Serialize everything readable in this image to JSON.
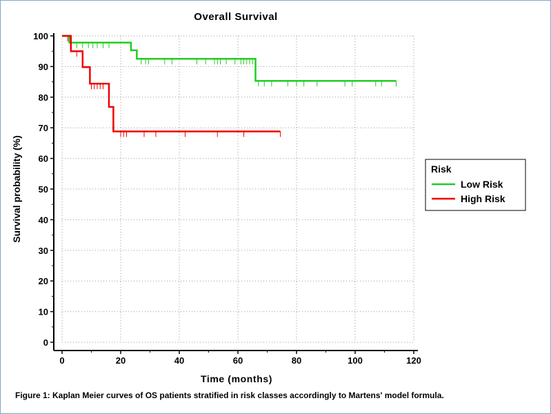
{
  "figure": {
    "caption": "Figure 1: Kaplan Meier curves of OS patients stratified in risk classes accordingly to Martens' model  formula."
  },
  "chart_data": {
    "type": "line",
    "title": "Overall Survival",
    "xlabel": "Time (months)",
    "ylabel": "Survival probability (%)",
    "xlim": [
      0,
      120
    ],
    "ylim": [
      0,
      100
    ],
    "xticks": [
      "0",
      "20",
      "40",
      "60",
      "80",
      "100",
      "120"
    ],
    "yticks": [
      "0",
      "10",
      "20",
      "30",
      "40",
      "50",
      "60",
      "70",
      "80",
      "90",
      "100"
    ],
    "grid": true,
    "legend": {
      "title": "Risk",
      "placement": "right"
    },
    "series": [
      {
        "name": "Low Risk",
        "color": "#22cc22",
        "steps": [
          [
            0,
            100
          ],
          [
            2.5,
            100
          ],
          [
            2.5,
            97.8
          ],
          [
            23.5,
            97.8
          ],
          [
            23.5,
            95.3
          ],
          [
            25.5,
            95.3
          ],
          [
            25.5,
            92.5
          ],
          [
            66,
            92.5
          ],
          [
            66,
            85.3
          ],
          [
            114,
            85.3
          ]
        ],
        "censored": [
          [
            3,
            97.8
          ],
          [
            5,
            97.8
          ],
          [
            7,
            97.8
          ],
          [
            9,
            97.8
          ],
          [
            10.5,
            97.8
          ],
          [
            12,
            97.8
          ],
          [
            14,
            97.8
          ],
          [
            16,
            97.8
          ],
          [
            27,
            92.5
          ],
          [
            28.5,
            92.5
          ],
          [
            29.5,
            92.5
          ],
          [
            35,
            92.5
          ],
          [
            37.5,
            92.5
          ],
          [
            46,
            92.5
          ],
          [
            49,
            92.5
          ],
          [
            52,
            92.5
          ],
          [
            53,
            92.5
          ],
          [
            54,
            92.5
          ],
          [
            56,
            92.5
          ],
          [
            59,
            92.5
          ],
          [
            61,
            92.5
          ],
          [
            62,
            92.5
          ],
          [
            63,
            92.5
          ],
          [
            64,
            92.5
          ],
          [
            65,
            92.5
          ],
          [
            67,
            85.3
          ],
          [
            69,
            85.3
          ],
          [
            71.5,
            85.3
          ],
          [
            77,
            85.3
          ],
          [
            80,
            85.3
          ],
          [
            82.5,
            85.3
          ],
          [
            87,
            85.3
          ],
          [
            96.5,
            85.3
          ],
          [
            99,
            85.3
          ],
          [
            107,
            85.3
          ],
          [
            109,
            85.3
          ],
          [
            114,
            85.3
          ]
        ]
      },
      {
        "name": "High Risk",
        "color": "#ee0000",
        "steps": [
          [
            0,
            100
          ],
          [
            3,
            100
          ],
          [
            3,
            95
          ],
          [
            7,
            95
          ],
          [
            7,
            89.8
          ],
          [
            9.5,
            89.8
          ],
          [
            9.5,
            84.4
          ],
          [
            16,
            84.4
          ],
          [
            16,
            76.8
          ],
          [
            17.5,
            76.8
          ],
          [
            17.5,
            68.8
          ],
          [
            74.5,
            68.8
          ]
        ],
        "censored": [
          [
            2,
            100
          ],
          [
            5,
            95
          ],
          [
            10,
            84.4
          ],
          [
            11,
            84.4
          ],
          [
            12,
            84.4
          ],
          [
            13,
            84.4
          ],
          [
            14,
            84.4
          ],
          [
            20,
            68.8
          ],
          [
            21,
            68.8
          ],
          [
            22,
            68.8
          ],
          [
            28,
            68.8
          ],
          [
            32,
            68.8
          ],
          [
            42,
            68.8
          ],
          [
            53,
            68.8
          ],
          [
            62,
            68.8
          ],
          [
            74.5,
            68.8
          ]
        ]
      }
    ]
  }
}
